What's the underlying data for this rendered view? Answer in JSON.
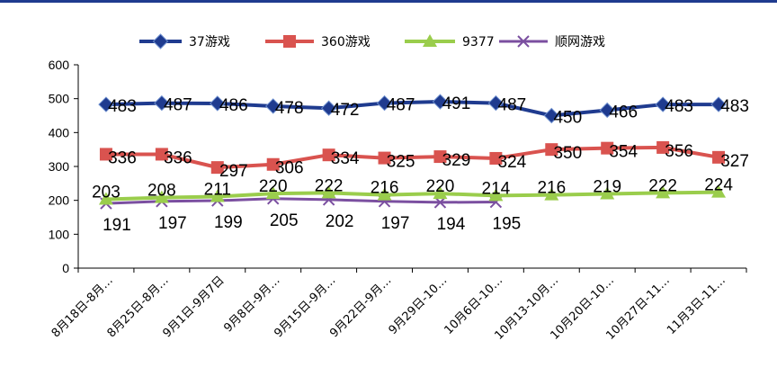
{
  "chart_data": {
    "type": "line",
    "title": "",
    "xlabel": "",
    "ylabel": "",
    "ylim": [
      0,
      600
    ],
    "yticks": [
      0,
      100,
      200,
      300,
      400,
      500,
      600
    ],
    "grid": false,
    "legend_position": "top-center",
    "categories": [
      "8月18日-8月…",
      "8月25日-8月…",
      "9月1日-9月7日",
      "9月8日-9月…",
      "9月15日-9月…",
      "9月22日-9月…",
      "9月29日-10…",
      "10月6日-10…",
      "10月13-10月…",
      "10月20日-10…",
      "10月27日-11…",
      "11月3日-11…"
    ],
    "series": [
      {
        "name": "37游戏",
        "color": "#1f3b8f",
        "marker": "diamond",
        "values": [
          483,
          487,
          486,
          478,
          472,
          487,
          491,
          487,
          450,
          466,
          483,
          483
        ]
      },
      {
        "name": "360游戏",
        "color": "#d9534f",
        "marker": "square",
        "values": [
          336,
          336,
          297,
          306,
          334,
          325,
          329,
          324,
          350,
          354,
          356,
          327
        ]
      },
      {
        "name": "9377",
        "color": "#9acd4c",
        "marker": "triangle",
        "values": [
          203,
          208,
          211,
          220,
          222,
          216,
          220,
          214,
          216,
          219,
          222,
          224
        ]
      },
      {
        "name": "顺网游戏",
        "color": "#7b4fa0",
        "marker": "x",
        "values": [
          191,
          197,
          199,
          205,
          202,
          197,
          194,
          195,
          null,
          null,
          null,
          null
        ]
      }
    ]
  }
}
